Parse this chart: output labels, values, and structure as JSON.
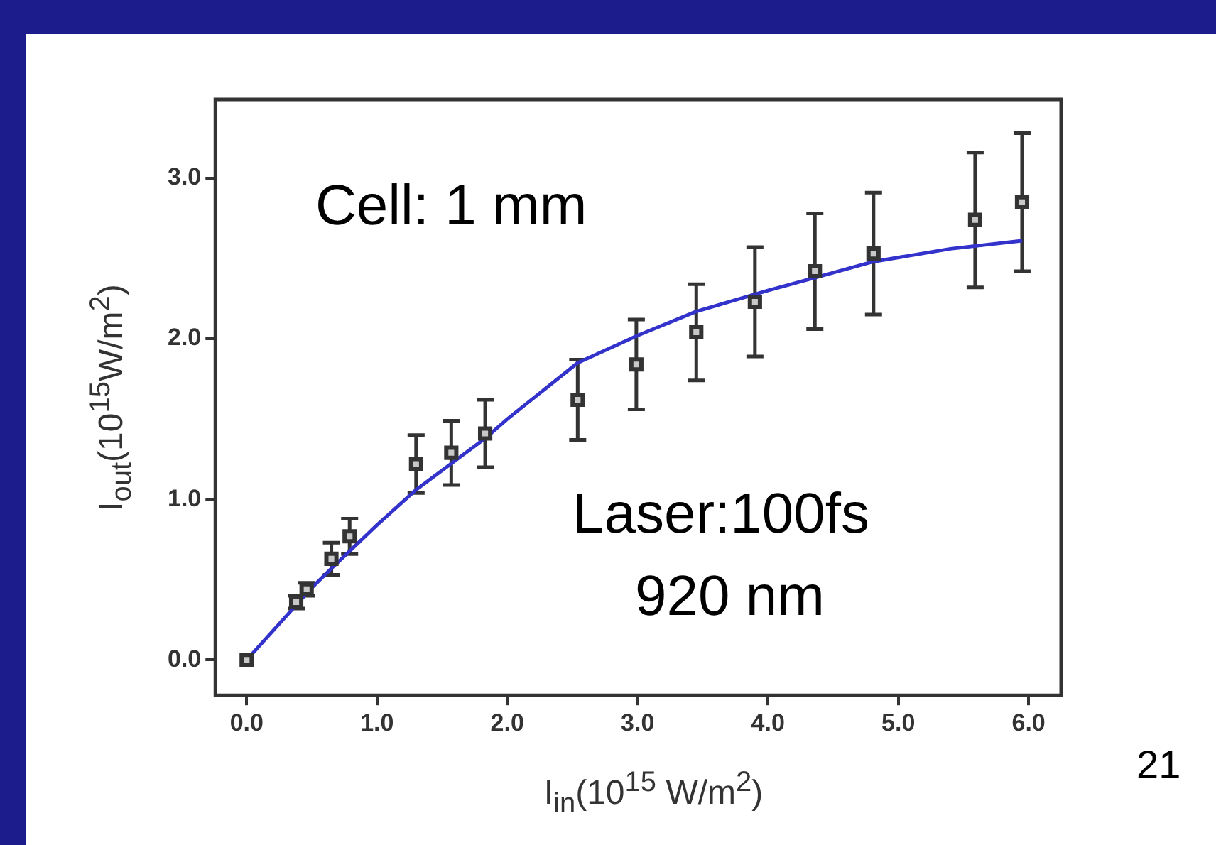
{
  "chart_data": {
    "type": "scatter",
    "xlabel": "I$_{in}$(10$^{15}$ W/m$^{2}$)",
    "ylabel": "I$_{out}$(10$^{15}$W/m$^{2}$)",
    "annotations": [
      "Cell: 1 mm",
      "Laser:100fs",
      "920 nm",
      "21"
    ],
    "series": [
      {
        "type": "scatter",
        "color": "#333333",
        "marker": "square",
        "x": [
          0,
          0.38,
          0.46,
          0.65,
          0.79,
          1.3,
          1.57,
          1.83,
          2.54,
          2.99,
          3.45,
          3.9,
          4.36,
          4.81,
          5.59,
          5.95
        ],
        "values": [
          0,
          0.36,
          0.44,
          0.63,
          0.77,
          1.22,
          1.29,
          1.41,
          1.62,
          1.84,
          2.04,
          2.23,
          2.42,
          2.53,
          2.74,
          2.85
        ],
        "errors": [
          null,
          0.04,
          0.04,
          0.1,
          0.11,
          0.18,
          0.2,
          0.21,
          0.25,
          0.28,
          0.3,
          0.34,
          0.36,
          0.38,
          0.42,
          0.43
        ]
      },
      {
        "type": "line",
        "color": "#3333cc",
        "marker": "none",
        "x": [
          0,
          0.5,
          0.65,
          1.0,
          1.3,
          1.83,
          2.0,
          2.54,
          3.0,
          3.45,
          4.0,
          4.36,
          4.81,
          5.4,
          5.95
        ],
        "values": [
          0,
          0.45,
          0.57,
          0.84,
          1.06,
          1.38,
          1.5,
          1.85,
          2.02,
          2.17,
          2.3,
          2.38,
          2.48,
          2.56,
          2.61
        ]
      }
    ],
    "xlim": [
      -0.24,
      6.25
    ],
    "xticks": [
      {
        "value": 0,
        "label": "0.0"
      },
      {
        "value": 1,
        "label": "1.0"
      },
      {
        "value": 2,
        "label": "2.0"
      },
      {
        "value": 3,
        "label": "3.0"
      },
      {
        "value": 4,
        "label": "4.0"
      },
      {
        "value": 5,
        "label": "5.0"
      },
      {
        "value": 6,
        "label": "6.0"
      }
    ],
    "ylim": [
      -0.22,
      3.49
    ],
    "yticks": [
      {
        "value": 0,
        "label": "0.0"
      },
      {
        "value": 1,
        "label": "1.0"
      },
      {
        "value": 2,
        "label": "2.0"
      },
      {
        "value": 3,
        "label": "3.0"
      }
    ],
    "grid": false,
    "legend": false
  }
}
